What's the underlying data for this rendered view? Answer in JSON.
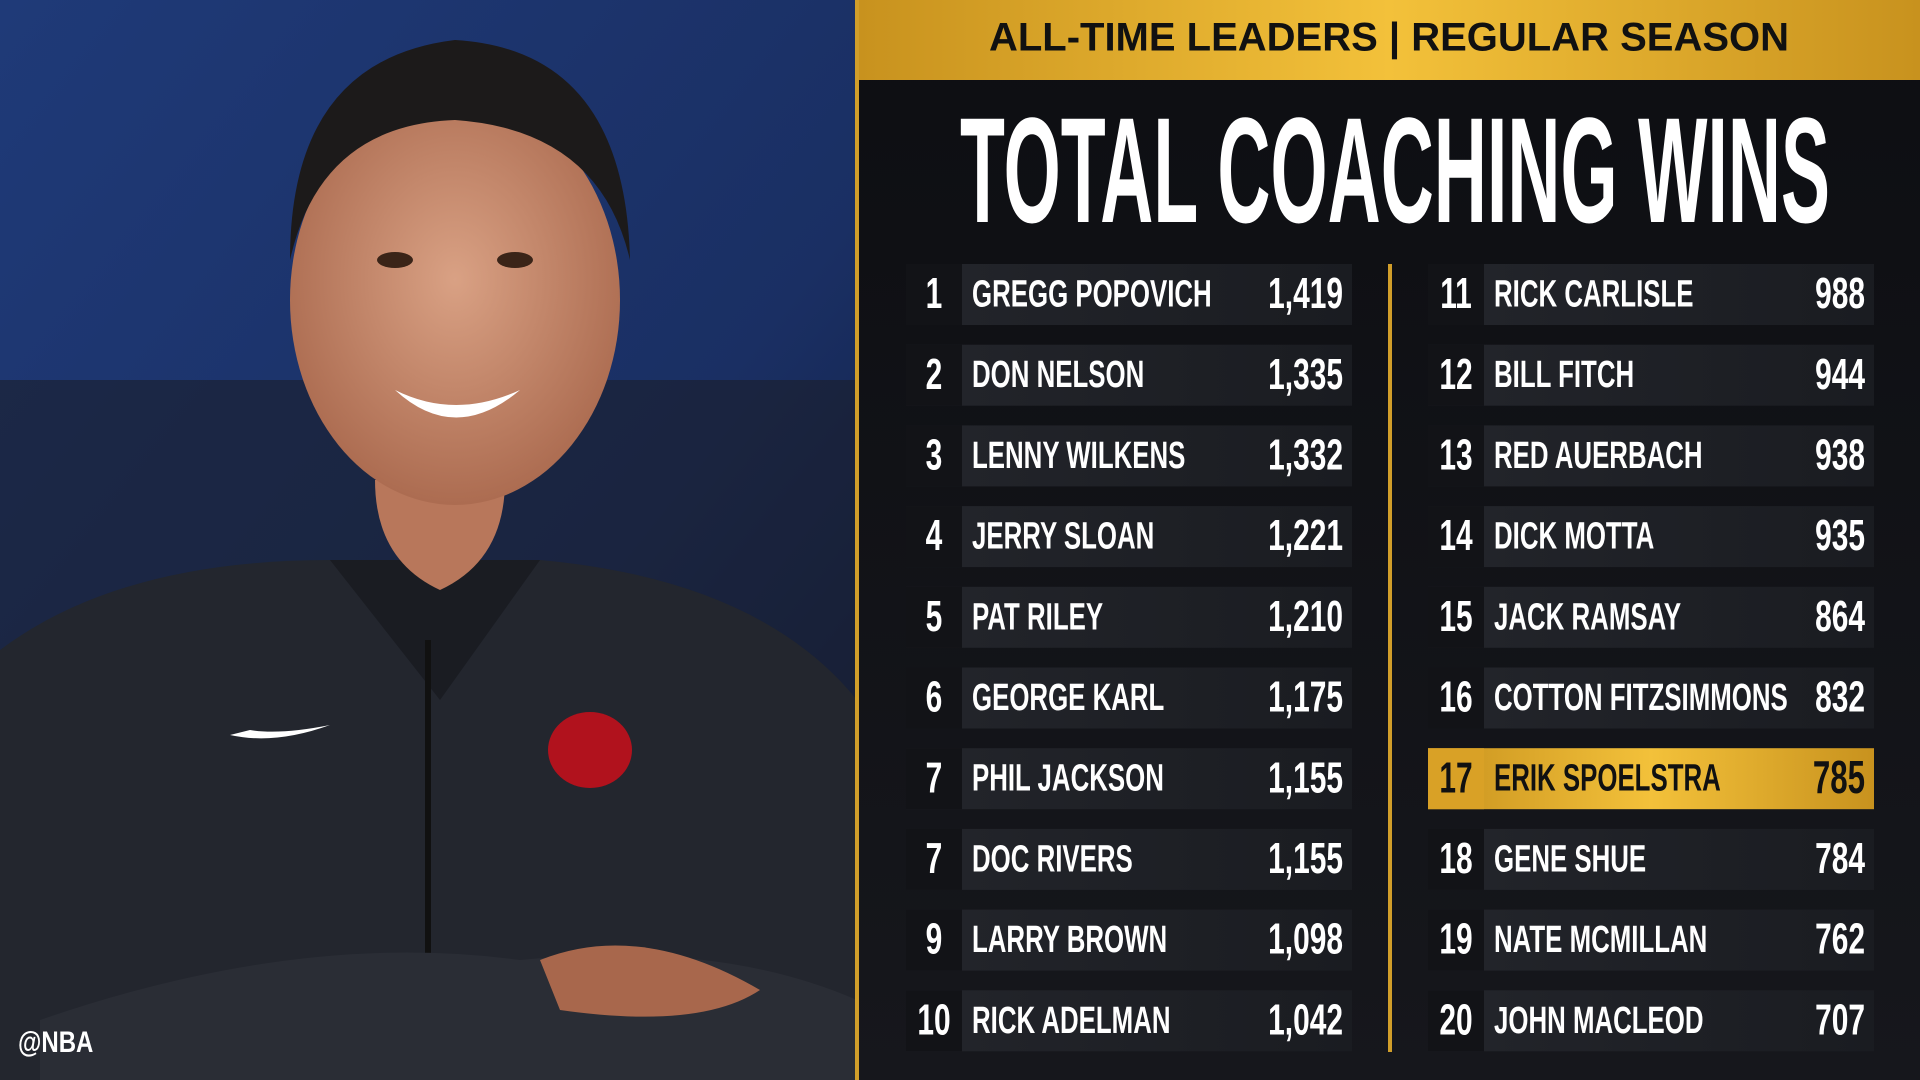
{
  "header": {
    "banner": "ALL-TIME LEADERS | REGULAR SEASON",
    "title": "TOTAL COACHING WINS"
  },
  "watermark": "@NBA",
  "table": {
    "rows": [
      {
        "rank": 1,
        "name": "GREGG POPOVICH",
        "wins": "1,419"
      },
      {
        "rank": 2,
        "name": "DON NELSON",
        "wins": "1,335"
      },
      {
        "rank": 3,
        "name": "LENNY WILKENS",
        "wins": "1,332"
      },
      {
        "rank": 4,
        "name": "JERRY SLOAN",
        "wins": "1,221"
      },
      {
        "rank": 5,
        "name": "PAT RILEY",
        "wins": "1,210"
      },
      {
        "rank": 6,
        "name": "GEORGE KARL",
        "wins": "1,175"
      },
      {
        "rank": 7,
        "name": "PHIL JACKSON",
        "wins": "1,155"
      },
      {
        "rank": 7,
        "name": "DOC RIVERS",
        "wins": "1,155"
      },
      {
        "rank": 9,
        "name": "LARRY BROWN",
        "wins": "1,098"
      },
      {
        "rank": 10,
        "name": "RICK ADELMAN",
        "wins": "1,042"
      },
      {
        "rank": 11,
        "name": "RICK CARLISLE",
        "wins": "988"
      },
      {
        "rank": 12,
        "name": "BILL FITCH",
        "wins": "944"
      },
      {
        "rank": 13,
        "name": "RED AUERBACH",
        "wins": "938"
      },
      {
        "rank": 14,
        "name": "DICK MOTTA",
        "wins": "935"
      },
      {
        "rank": 15,
        "name": "JACK RAMSAY",
        "wins": "864"
      },
      {
        "rank": 16,
        "name": "COTTON FITZSIMMONS",
        "wins": "832"
      },
      {
        "rank": 17,
        "name": "ERIK SPOELSTRA",
        "wins": "785",
        "highlighted": true
      },
      {
        "rank": 18,
        "name": "GENE SHUE",
        "wins": "784"
      },
      {
        "rank": 19,
        "name": "NATE MCMILLAN",
        "wins": "762"
      },
      {
        "rank": 20,
        "name": "JOHN MACLEOD",
        "wins": "707"
      }
    ]
  }
}
